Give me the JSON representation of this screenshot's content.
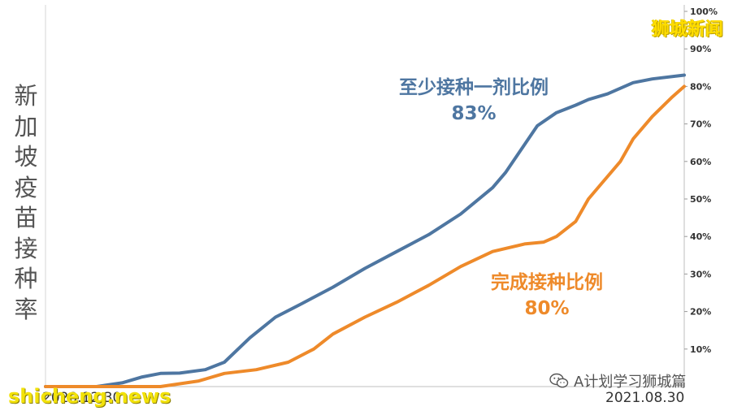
{
  "chart_data": {
    "type": "line",
    "title": "",
    "ylabel": "新加坡疫苗接种率",
    "x_range": [
      "2020.12.30",
      "2021.08.30"
    ],
    "ylim": [
      0,
      100
    ],
    "y_ticks": [
      "10%",
      "20%",
      "30%",
      "40%",
      "50%",
      "60%",
      "70%",
      "80%",
      "90%",
      "100%"
    ],
    "grid": false,
    "y_axis_position": "right",
    "series": [
      {
        "name": "至少接种一剂比例",
        "label_value": "83%",
        "color": "#4e76a1",
        "x": [
          0.0,
          0.08,
          0.12,
          0.15,
          0.18,
          0.21,
          0.25,
          0.28,
          0.32,
          0.36,
          0.4,
          0.45,
          0.5,
          0.55,
          0.6,
          0.65,
          0.7,
          0.72,
          0.74,
          0.77,
          0.8,
          0.83,
          0.85,
          0.88,
          0.9,
          0.92,
          0.95,
          1.0
        ],
        "y": [
          0.0,
          0.0,
          1.0,
          2.5,
          3.5,
          3.6,
          4.5,
          6.5,
          13.0,
          18.5,
          22.0,
          26.5,
          31.5,
          36.0,
          40.5,
          46.0,
          53.0,
          57.0,
          62.0,
          69.5,
          73.0,
          75.0,
          76.5,
          78.0,
          79.5,
          81.0,
          82.0,
          83.0
        ]
      },
      {
        "name": "完成接种比例",
        "label_value": "80%",
        "color": "#ee8a2a",
        "x": [
          0.0,
          0.18,
          0.24,
          0.28,
          0.33,
          0.38,
          0.42,
          0.45,
          0.5,
          0.55,
          0.6,
          0.65,
          0.7,
          0.75,
          0.78,
          0.8,
          0.83,
          0.85,
          0.87,
          0.9,
          0.92,
          0.95,
          0.98,
          1.0
        ],
        "y": [
          0.0,
          0.0,
          1.5,
          3.5,
          4.5,
          6.5,
          10.0,
          14.0,
          18.5,
          22.5,
          27.0,
          32.0,
          36.0,
          38.0,
          38.5,
          40.0,
          44.0,
          50.0,
          54.0,
          60.0,
          66.0,
          72.0,
          77.0,
          80.0
        ]
      }
    ]
  },
  "branding": {
    "top_right": "狮城新闻",
    "bottom_left": "shicheng.news",
    "bottom_right": "A计划学习狮城篇"
  },
  "icons": {
    "wechat": "wechat-icon"
  }
}
